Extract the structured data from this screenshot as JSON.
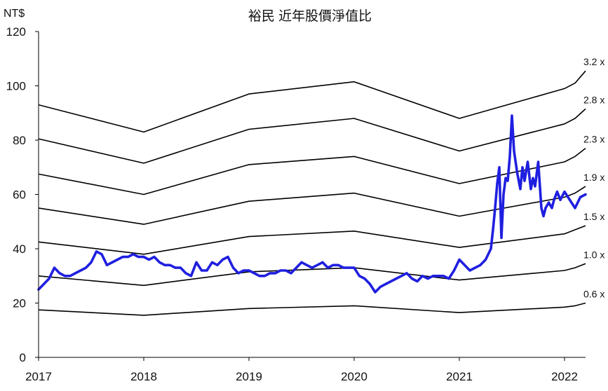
{
  "chart_data": {
    "type": "line",
    "title": "裕民 近年股價淨值比",
    "ylabel": "NT$",
    "xlabel": "",
    "xlim": [
      2017.0,
      2022.2
    ],
    "ylim": [
      0,
      120
    ],
    "xticks": [
      "2017",
      "2018",
      "2019",
      "2020",
      "2021",
      "2022"
    ],
    "yticks": [
      "0",
      "20",
      "40",
      "60",
      "80",
      "100",
      "120"
    ],
    "grid": false,
    "bands": [
      {
        "name": "3.2 x",
        "x": [
          2017.0,
          2018.0,
          2019.0,
          2020.0,
          2021.0,
          2022.0,
          2022.1,
          2022.2
        ],
        "y": [
          93,
          83,
          97,
          101.5,
          88,
          99,
          101,
          105.5
        ]
      },
      {
        "name": "2.8 x",
        "x": [
          2017.0,
          2018.0,
          2019.0,
          2020.0,
          2021.0,
          2022.0,
          2022.1,
          2022.2
        ],
        "y": [
          80.5,
          71.5,
          84,
          88,
          76,
          86,
          88,
          91.5
        ]
      },
      {
        "name": "2.3 x",
        "x": [
          2017.0,
          2018.0,
          2019.0,
          2020.0,
          2021.0,
          2022.0,
          2022.1,
          2022.2
        ],
        "y": [
          67.5,
          60,
          71,
          74,
          64,
          72,
          74,
          77
        ]
      },
      {
        "name": "1.9 x",
        "x": [
          2017.0,
          2018.0,
          2019.0,
          2020.0,
          2021.0,
          2022.0,
          2022.1,
          2022.2
        ],
        "y": [
          55,
          49,
          57.5,
          60.5,
          52,
          59,
          60.5,
          63
        ]
      },
      {
        "name": "1.5 x",
        "x": [
          2017.0,
          2018.0,
          2019.0,
          2020.0,
          2021.0,
          2022.0,
          2022.1,
          2022.2
        ],
        "y": [
          42.5,
          38,
          44.5,
          46.5,
          40.5,
          45.5,
          47,
          48.5
        ]
      },
      {
        "name": "1.0 x",
        "x": [
          2017.0,
          2018.0,
          2019.0,
          2020.0,
          2021.0,
          2022.0,
          2022.1,
          2022.2
        ],
        "y": [
          30,
          26.5,
          31.5,
          33,
          28.5,
          32,
          33,
          34.5
        ]
      },
      {
        "name": "0.6 x",
        "x": [
          2017.0,
          2018.0,
          2019.0,
          2020.0,
          2021.0,
          2022.0,
          2022.1,
          2022.2
        ],
        "y": [
          17.5,
          15.5,
          18,
          19,
          16.5,
          18.5,
          19,
          20
        ]
      }
    ],
    "series": [
      {
        "color": "#1f1fe0",
        "x": [
          2017.0,
          2017.05,
          2017.1,
          2017.15,
          2017.2,
          2017.25,
          2017.3,
          2017.35,
          2017.4,
          2017.45,
          2017.5,
          2017.55,
          2017.6,
          2017.65,
          2017.7,
          2017.75,
          2017.8,
          2017.85,
          2017.9,
          2017.95,
          2018.0,
          2018.05,
          2018.1,
          2018.15,
          2018.2,
          2018.25,
          2018.3,
          2018.35,
          2018.4,
          2018.45,
          2018.5,
          2018.55,
          2018.6,
          2018.65,
          2018.7,
          2018.75,
          2018.8,
          2018.85,
          2018.9,
          2018.95,
          2019.0,
          2019.05,
          2019.1,
          2019.15,
          2019.2,
          2019.25,
          2019.3,
          2019.35,
          2019.4,
          2019.45,
          2019.5,
          2019.55,
          2019.6,
          2019.65,
          2019.7,
          2019.75,
          2019.8,
          2019.85,
          2019.9,
          2019.95,
          2020.0,
          2020.05,
          2020.1,
          2020.15,
          2020.2,
          2020.25,
          2020.3,
          2020.35,
          2020.4,
          2020.45,
          2020.5,
          2020.55,
          2020.6,
          2020.65,
          2020.7,
          2020.75,
          2020.8,
          2020.85,
          2020.9,
          2020.95,
          2021.0,
          2021.05,
          2021.1,
          2021.15,
          2021.2,
          2021.25,
          2021.3,
          2021.32,
          2021.34,
          2021.36,
          2021.38,
          2021.4,
          2021.42,
          2021.44,
          2021.46,
          2021.48,
          2021.5,
          2021.52,
          2021.55,
          2021.58,
          2021.6,
          2021.62,
          2021.65,
          2021.68,
          2021.7,
          2021.72,
          2021.75,
          2021.78,
          2021.8,
          2021.82,
          2021.85,
          2021.88,
          2021.9,
          2021.93,
          2021.96,
          2022.0,
          2022.05,
          2022.1,
          2022.15,
          2022.2
        ],
        "y": [
          25,
          27,
          29,
          33,
          31,
          30,
          30,
          31,
          32,
          33,
          35,
          39,
          38,
          34,
          35,
          36,
          37,
          37,
          38,
          37,
          37,
          36,
          37,
          35,
          34,
          34,
          33,
          33,
          31,
          30,
          35,
          32,
          32,
          35,
          34,
          36,
          37,
          33,
          31,
          32,
          32,
          31,
          30,
          30,
          31,
          31,
          32,
          32,
          31,
          33,
          35,
          34,
          33,
          34,
          35,
          33,
          34,
          34,
          33,
          33,
          33,
          30,
          29,
          27,
          24,
          26,
          27,
          28,
          29,
          30,
          31,
          29,
          28,
          30,
          29,
          30,
          30,
          30,
          29,
          32,
          36,
          34,
          32,
          33,
          34,
          36,
          40,
          47,
          55,
          64,
          70,
          44,
          60,
          66,
          65,
          74,
          89,
          76,
          68,
          62,
          70,
          65,
          72,
          62,
          66,
          63,
          72,
          55,
          52,
          55,
          57,
          55,
          58,
          61,
          58,
          61,
          58,
          55,
          59,
          60
        ]
      }
    ]
  }
}
